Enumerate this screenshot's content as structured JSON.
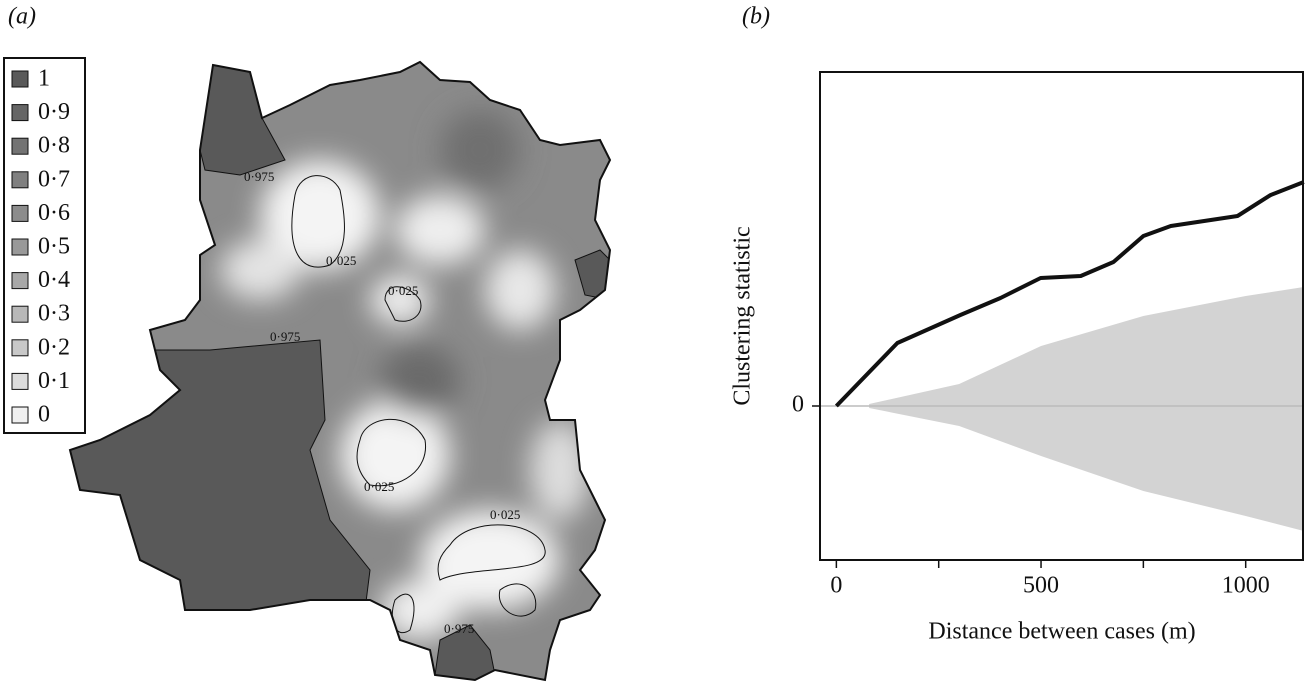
{
  "map": {
    "panel_label": "(a)",
    "legend": [
      {
        "label": "1",
        "color": "#595959"
      },
      {
        "label": "0·9",
        "color": "#666666"
      },
      {
        "label": "0·8",
        "color": "#737373"
      },
      {
        "label": "0·7",
        "color": "#808080"
      },
      {
        "label": "0·6",
        "color": "#8c8c8c"
      },
      {
        "label": "0·5",
        "color": "#999999"
      },
      {
        "label": "0·4",
        "color": "#a8a8a8"
      },
      {
        "label": "0·3",
        "color": "#b8b8b8"
      },
      {
        "label": "0·2",
        "color": "#c8c8c8"
      },
      {
        "label": "0·1",
        "color": "#dcdcdc"
      },
      {
        "label": "0",
        "color": "#f0f0f0"
      }
    ],
    "contour_labels": [
      "0·975",
      "0·025",
      "0·025",
      "0·975",
      "0·025",
      "0·025",
      "0·975"
    ]
  },
  "chart_data": {
    "type": "line",
    "panel_label": "(b)",
    "x_label": "Distance between cases (m)",
    "y_label": "Clustering statistic",
    "xlim": [
      -40,
      1140
    ],
    "ylim": [
      -1.54,
      3.34
    ],
    "xticks": [
      0,
      500,
      1000
    ],
    "xminorticks": [
      250,
      750
    ],
    "yticks": [
      0
    ],
    "grid": true,
    "series": [
      {
        "color": "#111111",
        "x": [
          0,
          149,
          303,
          401,
          499,
          597,
          677,
          750,
          817,
          980,
          1061,
          1142
        ],
        "values": [
          0,
          0.63,
          0.91,
          1.08,
          1.28,
          1.3,
          1.44,
          1.7,
          1.8,
          1.9,
          2.11,
          2.24
        ]
      }
    ],
    "envelope": {
      "color": "#d3d3d3",
      "x": [
        80,
        300,
        500,
        750,
        1000,
        1142
      ],
      "upper": [
        0.02,
        0.22,
        0.6,
        0.9,
        1.1,
        1.19
      ],
      "lower": [
        -0.02,
        -0.2,
        -0.5,
        -0.85,
        -1.1,
        -1.25
      ]
    }
  }
}
